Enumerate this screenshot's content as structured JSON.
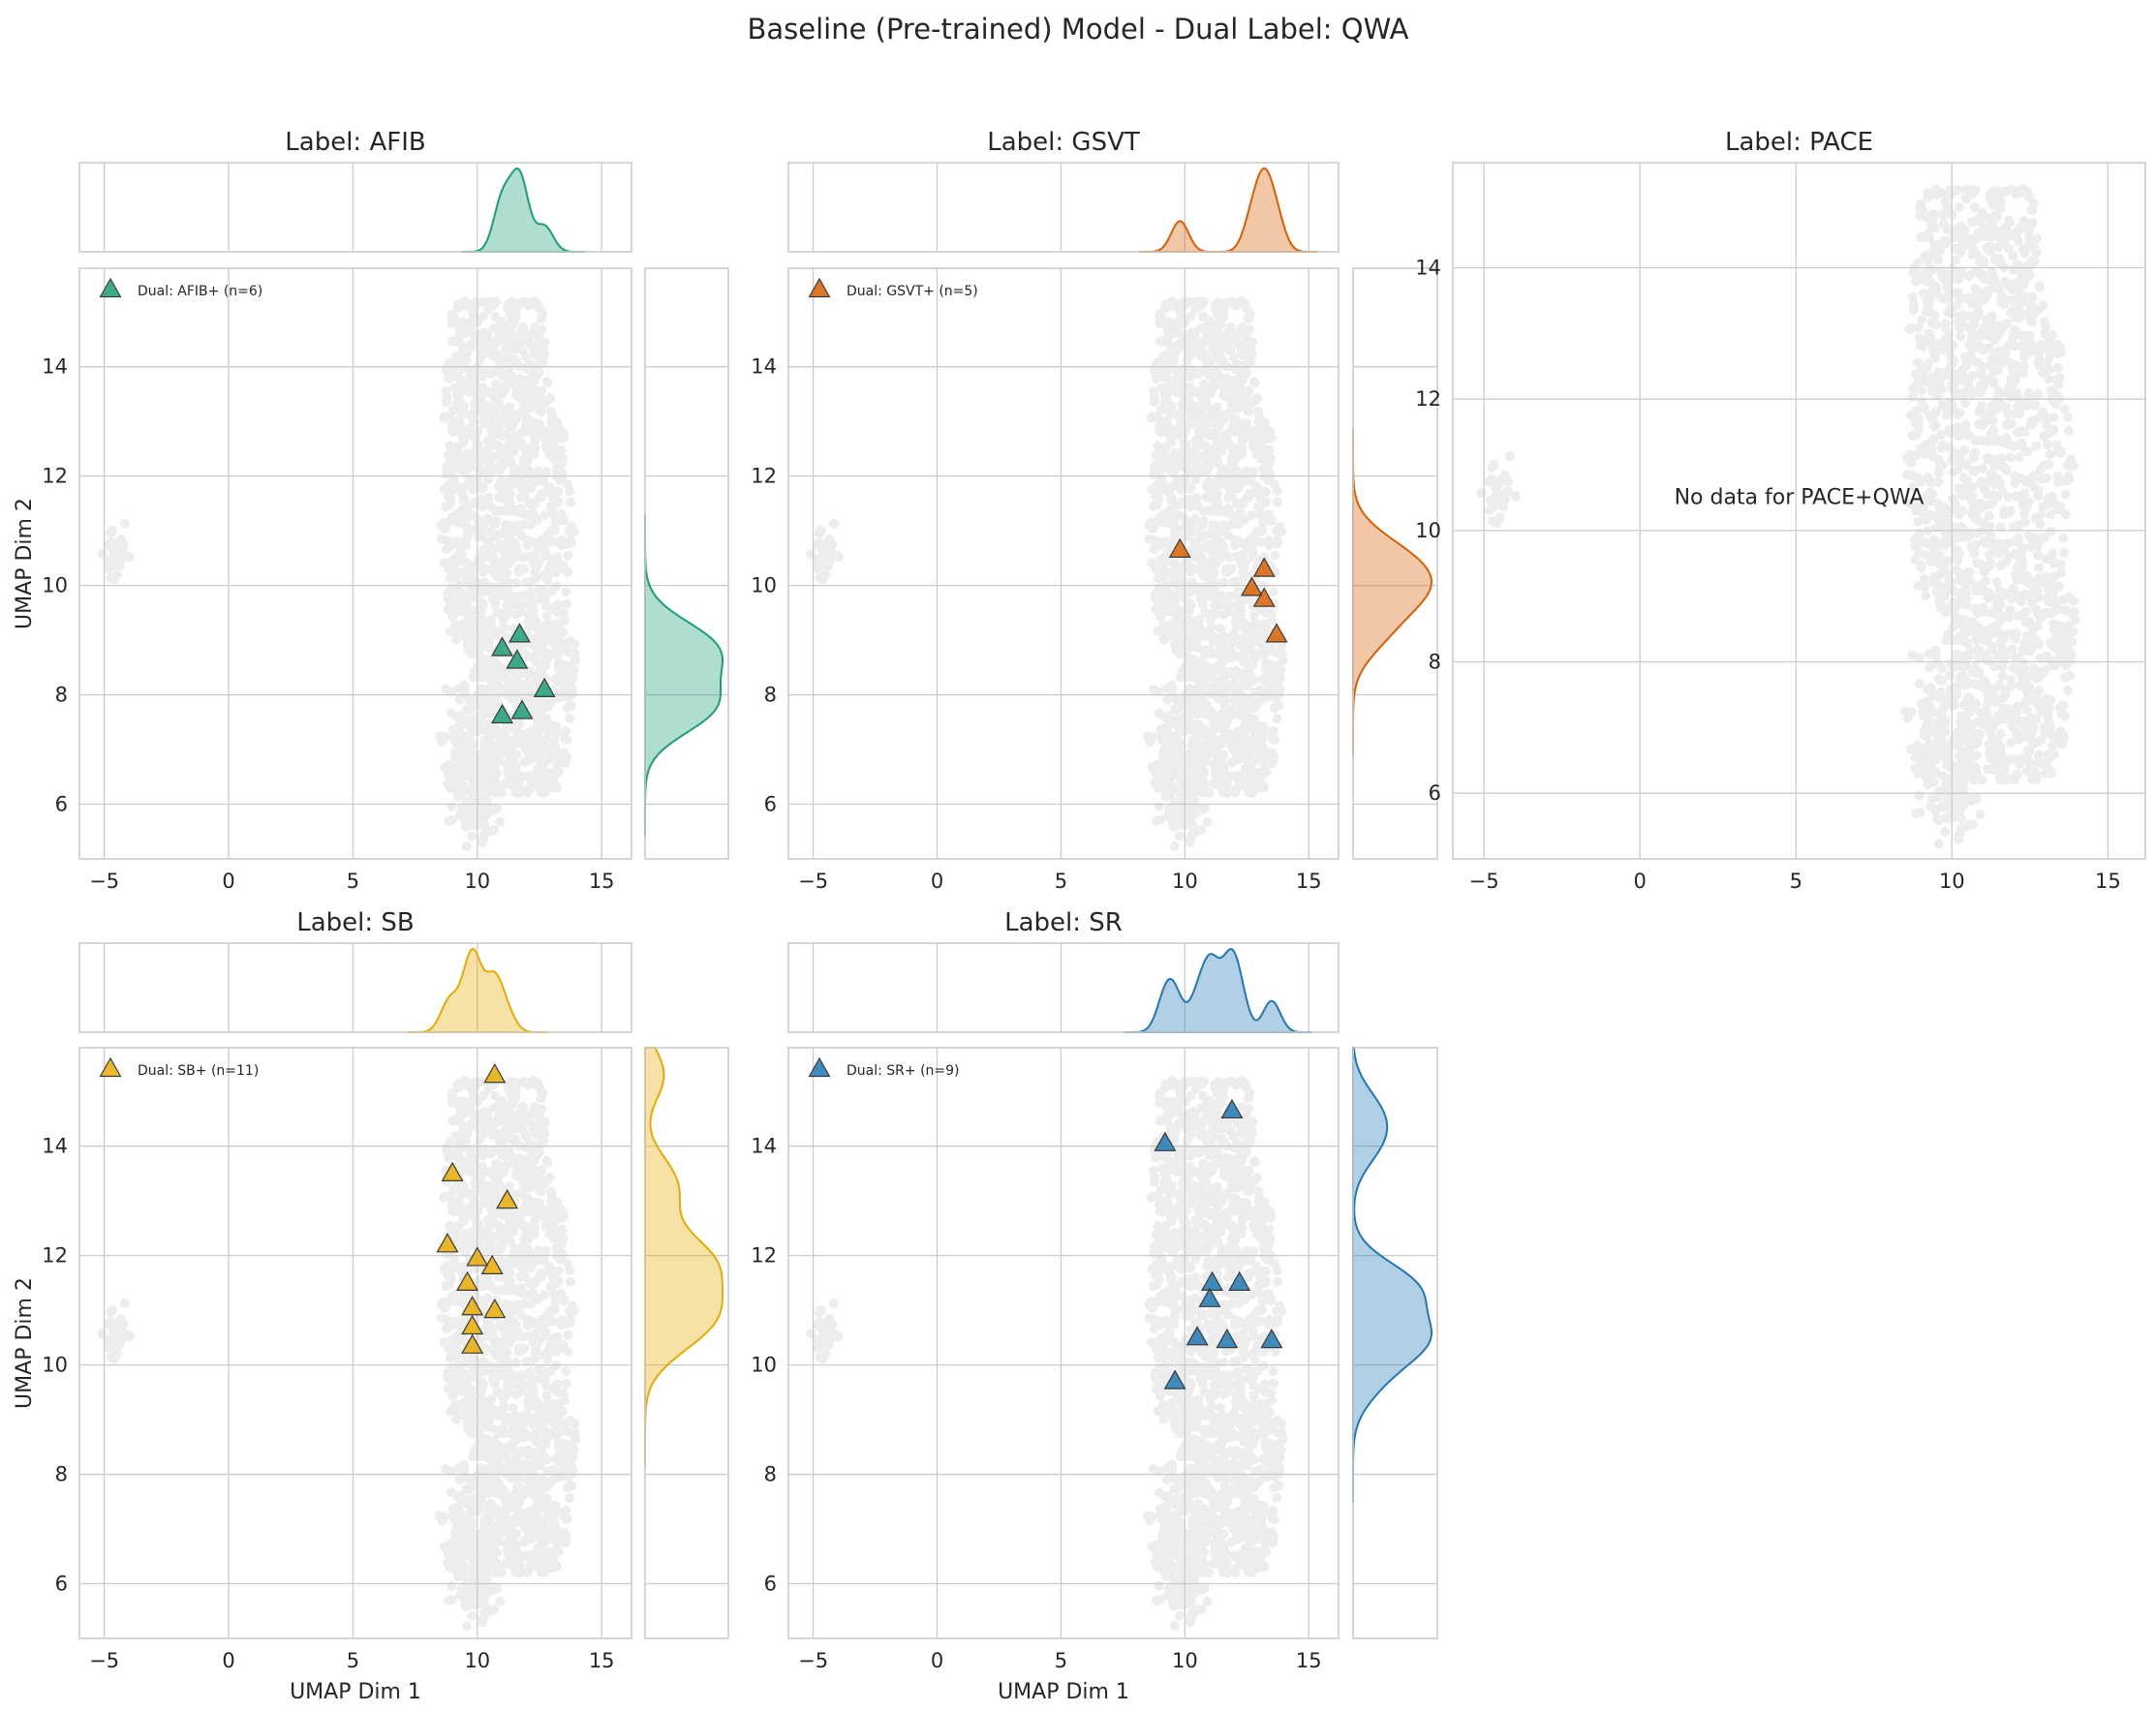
{
  "suptitle": "Baseline (Pre-trained) Model - Dual Label: QWA",
  "colors": {
    "background_points": "#c8c8c8",
    "grid": "#cccccc"
  },
  "chart_data": [
    {
      "type": "scatter",
      "id": "afib",
      "title": "Label: AFIB",
      "xlabel": "",
      "ylabel": "UMAP Dim 2",
      "xlim": [
        -6,
        16.2
      ],
      "ylim": [
        5,
        15.8
      ],
      "xticks": [
        -5,
        0,
        5,
        10,
        15
      ],
      "yticks": [
        6,
        8,
        10,
        12,
        14
      ],
      "marginals": true,
      "color": "#1b9e77",
      "legend": {
        "label": "Dual: AFIB+ (n=6)",
        "position": "upper-left"
      },
      "points": [
        [
          11.7,
          9.1
        ],
        [
          11.0,
          8.85
        ],
        [
          11.6,
          8.62
        ],
        [
          12.7,
          8.1
        ],
        [
          11.8,
          7.7
        ],
        [
          11.0,
          7.62
        ]
      ]
    },
    {
      "type": "scatter",
      "id": "gsvt",
      "title": "Label: GSVT",
      "xlabel": "",
      "ylabel": "",
      "xlim": [
        -6,
        16.2
      ],
      "ylim": [
        5,
        15.8
      ],
      "xticks": [
        -5,
        0,
        5,
        10,
        15
      ],
      "yticks": [
        6,
        8,
        10,
        12,
        14
      ],
      "marginals": true,
      "color": "#d95f02",
      "legend": {
        "label": "Dual: GSVT+ (n=5)",
        "position": "upper-left"
      },
      "points": [
        [
          9.8,
          10.65
        ],
        [
          13.2,
          10.3
        ],
        [
          12.7,
          9.95
        ],
        [
          13.2,
          9.75
        ],
        [
          13.7,
          9.1
        ]
      ]
    },
    {
      "type": "scatter",
      "id": "pace",
      "title": "Label: PACE",
      "xlabel": "",
      "ylabel": "",
      "xlim": [
        -6,
        16.2
      ],
      "ylim": [
        5,
        15.6
      ],
      "xticks": [
        -5,
        0,
        5,
        10,
        15
      ],
      "yticks": [
        6,
        8,
        10,
        12,
        14
      ],
      "marginals": false,
      "color": "#7570b3",
      "annotation": "No data for PACE+QWA",
      "points": []
    },
    {
      "type": "scatter",
      "id": "sb",
      "title": "Label: SB",
      "xlabel": "UMAP Dim 1",
      "ylabel": "UMAP Dim 2",
      "xlim": [
        -6,
        16.2
      ],
      "ylim": [
        5,
        15.8
      ],
      "xticks": [
        -5,
        0,
        5,
        10,
        15
      ],
      "yticks": [
        6,
        8,
        10,
        12,
        14
      ],
      "marginals": true,
      "color": "#e6ab02",
      "legend": {
        "label": "Dual: SB+ (n=11)",
        "position": "upper-left"
      },
      "points": [
        [
          10.7,
          15.3
        ],
        [
          9.0,
          13.5
        ],
        [
          11.2,
          13.0
        ],
        [
          8.8,
          12.2
        ],
        [
          10.0,
          11.95
        ],
        [
          10.6,
          11.8
        ],
        [
          9.6,
          11.5
        ],
        [
          9.8,
          11.05
        ],
        [
          10.7,
          11.0
        ],
        [
          9.8,
          10.7
        ],
        [
          9.8,
          10.35
        ]
      ]
    },
    {
      "type": "scatter",
      "id": "sr",
      "title": "Label: SR",
      "xlabel": "UMAP Dim 1",
      "ylabel": "",
      "xlim": [
        -6,
        16.2
      ],
      "ylim": [
        5,
        15.8
      ],
      "xticks": [
        -5,
        0,
        5,
        10,
        15
      ],
      "yticks": [
        6,
        8,
        10,
        12,
        14
      ],
      "marginals": true,
      "color": "#1f78b4",
      "legend": {
        "label": "Dual: SR+ (n=9)",
        "position": "upper-left"
      },
      "points": [
        [
          11.9,
          14.65
        ],
        [
          9.2,
          14.05
        ],
        [
          11.1,
          11.5
        ],
        [
          12.2,
          11.5
        ],
        [
          11.0,
          11.2
        ],
        [
          10.5,
          10.5
        ],
        [
          11.7,
          10.45
        ],
        [
          13.5,
          10.45
        ],
        [
          9.6,
          9.7
        ]
      ]
    }
  ]
}
